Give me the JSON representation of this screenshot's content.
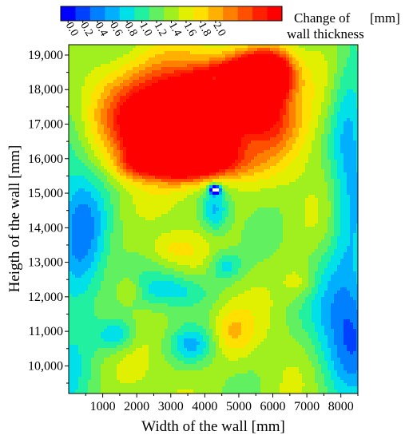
{
  "chart_data": {
    "type": "heatmap",
    "title": "",
    "xlabel": "Width of the wall  [mm]",
    "ylabel": "Heigth of the wall  [mm]",
    "xlim": [
      0,
      8500
    ],
    "ylim": [
      9200,
      19300
    ],
    "x_ticks": [
      1000,
      2000,
      3000,
      4000,
      5000,
      6000,
      7000,
      8000
    ],
    "x_tick_labels": [
      "1000",
      "2000",
      "3000",
      "4000",
      "5000",
      "6000",
      "7000",
      "8000"
    ],
    "y_ticks": [
      10000,
      11000,
      12000,
      13000,
      14000,
      15000,
      16000,
      17000,
      18000,
      19000
    ],
    "y_tick_labels": [
      "10,000",
      "11,000",
      "12,000",
      "13,000",
      "14,000",
      "15,000",
      "16,000",
      "17,000",
      "18,000",
      "19,000"
    ],
    "colorbar": {
      "label_line1": "Change of",
      "label_line2": "wall thickness",
      "unit": "[mm]",
      "min": 0.0,
      "max": 2.2,
      "tick_labels": [
        "0.0",
        "0.2",
        "0.4",
        "0.6",
        "0.8",
        "1.0",
        "1.2",
        "1.4",
        "1.6",
        "1.8",
        "2.0"
      ],
      "colors": [
        "#0000ff",
        "#0040ff",
        "#0080ff",
        "#00b0ff",
        "#00e0e8",
        "#20f0a0",
        "#60f060",
        "#a0f020",
        "#e0f000",
        "#ffe000",
        "#ffb000",
        "#ff8000",
        "#ff5000",
        "#ff2000",
        "#ff0000"
      ]
    },
    "regions": [
      {
        "x": 2800,
        "y": 16300,
        "sx": 600,
        "sy": 450,
        "v": 1.0
      },
      {
        "x": 3300,
        "y": 16500,
        "sx": 550,
        "sy": 500,
        "v": 0.85
      },
      {
        "x": 3900,
        "y": 16600,
        "sx": 650,
        "sy": 650,
        "v": 0.85
      },
      {
        "x": 4500,
        "y": 17700,
        "sx": 600,
        "sy": 450,
        "v": 0.75
      },
      {
        "x": 5200,
        "y": 18100,
        "sx": 550,
        "sy": 450,
        "v": 0.85
      },
      {
        "x": 5900,
        "y": 18500,
        "sx": 500,
        "sy": 450,
        "v": 0.75
      },
      {
        "x": 3300,
        "y": 17800,
        "sx": 1100,
        "sy": 700,
        "v": 0.5
      },
      {
        "x": 2000,
        "y": 17000,
        "sx": 600,
        "sy": 600,
        "v": 0.3
      },
      {
        "x": 1900,
        "y": 15800,
        "sx": 450,
        "sy": 300,
        "v": 0.22
      },
      {
        "x": 4400,
        "y": 15900,
        "sx": 800,
        "sy": 400,
        "v": 0.3
      },
      {
        "x": 5800,
        "y": 17200,
        "sx": 600,
        "sy": 700,
        "v": 0.32
      },
      {
        "x": 4300,
        "y": 18300,
        "sx": 130,
        "sy": 130,
        "v": -0.45
      },
      {
        "x": 4300,
        "y": 15100,
        "sx": 110,
        "sy": 90,
        "v": -0.8
      },
      {
        "x": 4300,
        "y": 14500,
        "sx": 300,
        "sy": 500,
        "v": -0.25
      },
      {
        "x": 3100,
        "y": 12200,
        "sx": 800,
        "sy": 350,
        "v": -0.2
      },
      {
        "x": 4600,
        "y": 12900,
        "sx": 350,
        "sy": 300,
        "v": -0.2
      },
      {
        "x": 1400,
        "y": 10900,
        "sx": 400,
        "sy": 350,
        "v": -0.22
      },
      {
        "x": 3600,
        "y": 10600,
        "sx": 450,
        "sy": 350,
        "v": -0.2
      },
      {
        "x": 500,
        "y": 13500,
        "sx": 500,
        "sy": 1400,
        "v": -0.25
      },
      {
        "x": 8000,
        "y": 11200,
        "sx": 700,
        "sy": 1300,
        "v": -0.25
      },
      {
        "x": 8200,
        "y": 16500,
        "sx": 400,
        "sy": 2500,
        "v": -0.18
      },
      {
        "x": 6800,
        "y": 12400,
        "sx": 350,
        "sy": 350,
        "v": 0.12
      },
      {
        "x": 4800,
        "y": 11000,
        "sx": 400,
        "sy": 500,
        "v": 0.15
      },
      {
        "x": 3000,
        "y": 13400,
        "sx": 500,
        "sy": 300,
        "v": 0.12
      },
      {
        "x": 1800,
        "y": 12200,
        "sx": 250,
        "sy": 250,
        "v": 0.12
      }
    ]
  }
}
